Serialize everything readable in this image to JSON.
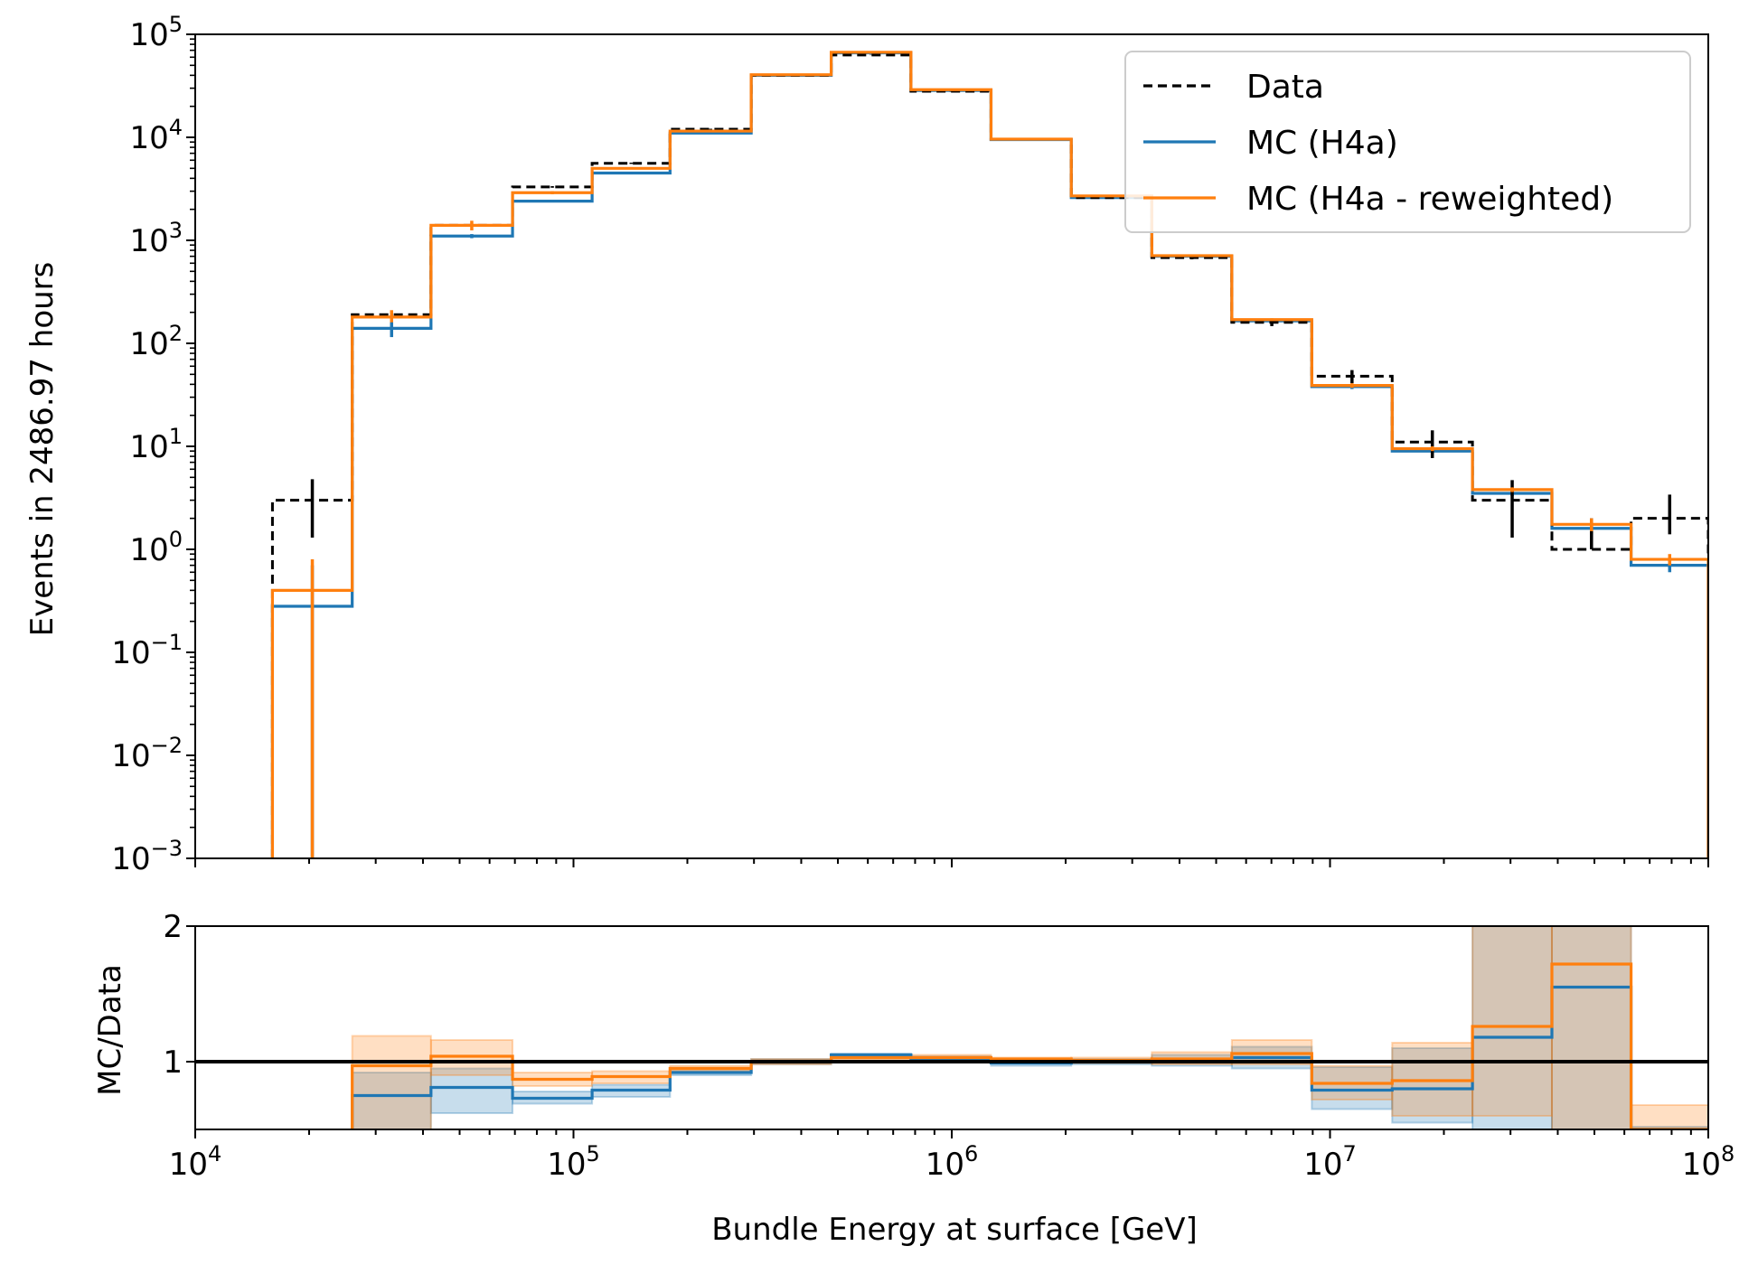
{
  "chart_data": [
    {
      "type": "step-histogram",
      "panel": "main",
      "ylabel": "Events in 2486.97 hours",
      "xscale": "log",
      "yscale": "log",
      "xlim": [
        10000,
        100000000
      ],
      "ylim": [
        0.001,
        100000
      ],
      "x_tick_values": [
        10000,
        100000,
        1000000,
        10000000,
        100000000
      ],
      "y_ticks": [
        {
          "base": "10",
          "exp": "5",
          "value": 100000
        },
        {
          "base": "10",
          "exp": "4",
          "value": 10000
        },
        {
          "base": "10",
          "exp": "3",
          "value": 1000
        },
        {
          "base": "10",
          "exp": "2",
          "value": 100
        },
        {
          "base": "10",
          "exp": "1",
          "value": 10
        },
        {
          "base": "10",
          "exp": "0",
          "value": 1
        },
        {
          "base": "10",
          "exp": "−1",
          "value": 0.1
        },
        {
          "base": "10",
          "exp": "−2",
          "value": 0.01
        },
        {
          "base": "10",
          "exp": "−3",
          "value": 0.001
        }
      ],
      "bin_edges": [
        16000,
        26000,
        42000,
        69000,
        112000,
        180000,
        295000,
        480000,
        780000,
        1270000,
        2070000,
        3380000,
        5500000,
        8950000,
        14600000,
        23800000,
        38600000,
        62500000,
        100000000
      ],
      "legend": {
        "position": "top-right"
      },
      "series": [
        {
          "name": "Data",
          "color": "#000000",
          "style": "dashed",
          "values": [
            3,
            190,
            1400,
            3300,
            5600,
            12000,
            40000,
            63000,
            28000,
            9600,
            2600,
            680,
            160,
            48,
            11,
            3,
            1,
            2
          ],
          "err_low": [
            1.3,
            176,
            1360,
            3240,
            5520,
            11890,
            39800,
            62750,
            27830,
            9500,
            2550,
            654,
            147,
            41,
            7.7,
            1.3,
            1,
            1.4
          ],
          "err_high": [
            4.8,
            204,
            1440,
            3360,
            5680,
            12110,
            40200,
            63250,
            28170,
            9700,
            2650,
            706,
            173,
            55,
            14.3,
            4.7,
            2,
            3.4
          ]
        },
        {
          "name": "MC (H4a)",
          "color": "#1f77b4",
          "style": "solid",
          "values": [
            0.28,
            140,
            1100,
            2400,
            4500,
            11000,
            40000,
            66000,
            28500,
            9500,
            2600,
            700,
            165,
            38,
            9,
            3.5,
            1.6,
            0.7
          ],
          "err_low": [
            0.001,
            115,
            1050,
            2350,
            4450,
            10900,
            39800,
            65800,
            28400,
            9450,
            2580,
            690,
            160,
            36,
            8.5,
            3.3,
            1.4,
            0.6
          ],
          "err_high": [
            0.7,
            165,
            1150,
            2450,
            4550,
            11100,
            40200,
            66200,
            28600,
            9550,
            2620,
            710,
            170,
            40,
            9.5,
            3.7,
            1.8,
            0.8
          ]
        },
        {
          "name": "MC (H4a - reweighted)",
          "color": "#ff7f0e",
          "style": "solid",
          "values": [
            0.4,
            180,
            1400,
            2900,
            5000,
            11500,
            40500,
            67000,
            29000,
            9600,
            2700,
            710,
            170,
            39,
            9.5,
            3.8,
            1.75,
            0.8
          ],
          "err_low": [
            0.001,
            160,
            1250,
            2800,
            4900,
            11400,
            40300,
            66800,
            28900,
            9550,
            2680,
            700,
            165,
            37,
            9,
            3.6,
            1.5,
            0.7
          ],
          "err_high": [
            0.8,
            210,
            1550,
            3000,
            5100,
            11600,
            40700,
            67200,
            29100,
            9650,
            2720,
            720,
            175,
            41,
            10,
            4,
            2,
            0.9
          ]
        }
      ]
    },
    {
      "type": "step-ratio",
      "panel": "ratio",
      "xlabel": "Bundle Energy at surface [GeV]",
      "ylabel": "MC/Data",
      "xscale": "log",
      "xlim": [
        10000,
        100000000
      ],
      "ylim": [
        0.5,
        2
      ],
      "x_ticks": [
        {
          "base": "10",
          "exp": "4",
          "value": 10000
        },
        {
          "base": "10",
          "exp": "5",
          "value": 100000
        },
        {
          "base": "10",
          "exp": "6",
          "value": 1000000
        },
        {
          "base": "10",
          "exp": "7",
          "value": 10000000
        },
        {
          "base": "10",
          "exp": "8",
          "value": 100000000
        }
      ],
      "y_ticks": [
        {
          "label": "1",
          "value": 1
        },
        {
          "label": "2",
          "value": 2
        }
      ],
      "reference_line": 1,
      "bin_edges": [
        26000,
        42000,
        69000,
        112000,
        180000,
        295000,
        480000,
        780000,
        1270000,
        2070000,
        3380000,
        5500000,
        8950000,
        14600000,
        23800000,
        38600000,
        62500000,
        100000000
      ],
      "series": [
        {
          "name": "MC (H4a)",
          "color": "#1f77b4",
          "values": [
            0.75,
            0.81,
            0.73,
            0.79,
            0.92,
            1.0,
            1.05,
            1.02,
            0.99,
            1.0,
            1.01,
            1.03,
            0.79,
            0.8,
            1.18,
            1.55,
            0.35
          ],
          "band_low": [
            0.5,
            0.62,
            0.69,
            0.74,
            0.9,
            0.98,
            1.03,
            1.0,
            0.97,
            0.98,
            0.97,
            0.95,
            0.65,
            0.55,
            0.5,
            0.5,
            0.3
          ],
          "band_high": [
            0.92,
            0.95,
            0.78,
            0.83,
            0.95,
            1.02,
            1.06,
            1.04,
            1.01,
            1.02,
            1.05,
            1.11,
            0.96,
            1.1,
            2.0,
            2.0,
            0.52
          ]
        },
        {
          "name": "MC (H4a - reweighted)",
          "color": "#ff7f0e",
          "values": [
            0.97,
            1.04,
            0.87,
            0.89,
            0.95,
            1.0,
            1.03,
            1.03,
            1.02,
            1.01,
            1.02,
            1.06,
            0.84,
            0.86,
            1.26,
            1.72,
            0.4
          ],
          "band_low": [
            0.5,
            0.9,
            0.82,
            0.84,
            0.93,
            0.98,
            1.01,
            1.01,
            1.0,
            0.99,
            0.98,
            0.98,
            0.72,
            0.6,
            0.6,
            0.5,
            0.5
          ],
          "band_high": [
            1.19,
            1.16,
            0.92,
            0.93,
            0.97,
            1.02,
            1.04,
            1.05,
            1.03,
            1.03,
            1.07,
            1.16,
            0.97,
            1.14,
            2.0,
            2.0,
            0.68
          ]
        }
      ]
    }
  ]
}
